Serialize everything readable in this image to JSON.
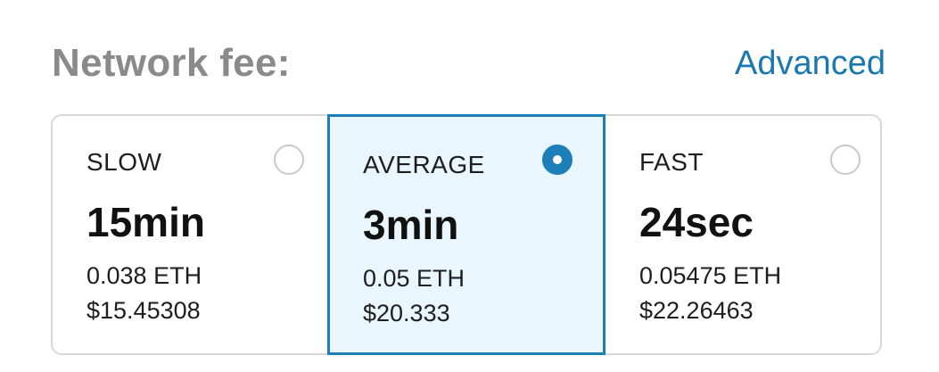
{
  "header": {
    "title": "Network fee:",
    "advanced_label": "Advanced"
  },
  "colors": {
    "accent": "#1d7fb8",
    "selected_background": "#e9f6fd",
    "title_gray": "#8a8a8a"
  },
  "options": [
    {
      "speed": "SLOW",
      "time": "15min",
      "eth": "0.038 ETH",
      "usd": "$15.45308",
      "selected": false
    },
    {
      "speed": "AVERAGE",
      "time": "3min",
      "eth": "0.05 ETH",
      "usd": "$20.333",
      "selected": true
    },
    {
      "speed": "FAST",
      "time": "24sec",
      "eth": "0.05475 ETH",
      "usd": "$22.26463",
      "selected": false
    }
  ]
}
